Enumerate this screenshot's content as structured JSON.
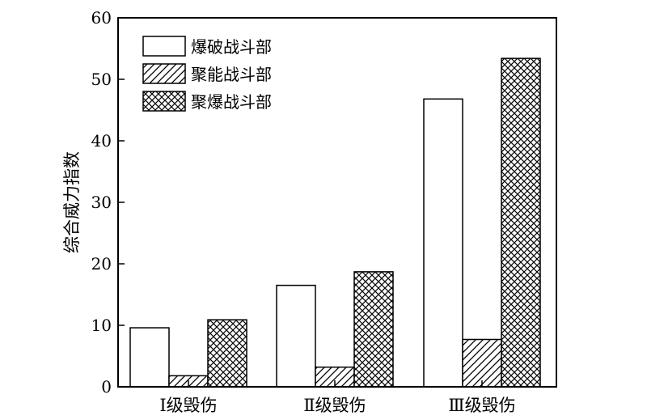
{
  "chart_data": {
    "type": "bar",
    "categories": [
      "Ⅰ级毁伤",
      "Ⅱ级毁伤",
      "Ⅲ级毁伤"
    ],
    "series": [
      {
        "name": "爆破战斗部",
        "values": [
          9.6,
          16.5,
          46.8
        ],
        "pattern": "empty"
      },
      {
        "name": "聚能战斗部",
        "values": [
          1.8,
          3.2,
          7.7
        ],
        "pattern": "diagonal"
      },
      {
        "name": "聚爆战斗部",
        "values": [
          10.9,
          18.7,
          53.4
        ],
        "pattern": "crosshatch"
      }
    ],
    "xlabel": "",
    "ylabel": "综合威力指数",
    "ylim": [
      0,
      60
    ],
    "yticks": [
      "0",
      "10",
      "20",
      "30",
      "40",
      "50",
      "60"
    ],
    "legend_position": "top-left",
    "grid": false,
    "colors": {
      "stroke": "#000000",
      "fill": "#ffffff"
    }
  }
}
